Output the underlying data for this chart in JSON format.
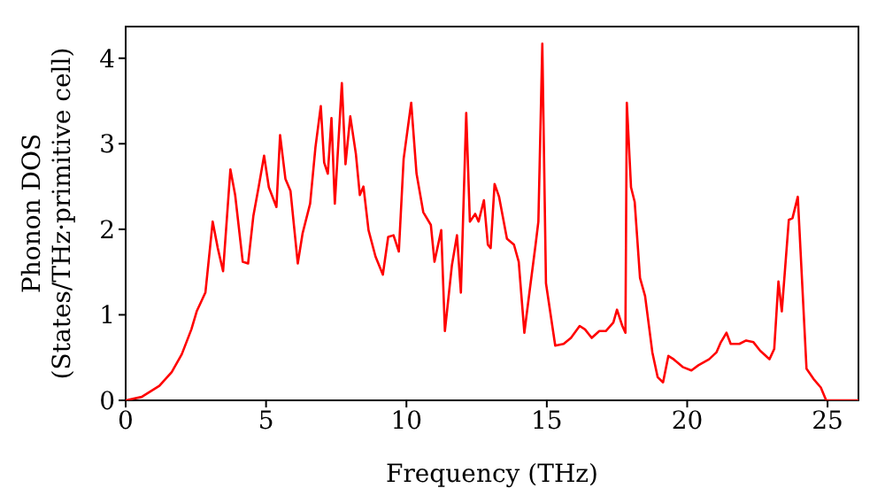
{
  "chart_data": {
    "type": "line",
    "xlabel": "Frequency (THz)",
    "ylabel": "Phonon DOS\n(States/THz·primitive cell)",
    "xlim": [
      0,
      26.1
    ],
    "xticks": [
      0,
      5,
      10,
      15,
      20,
      25
    ],
    "ylim": [
      0,
      4.37
    ],
    "yticks": [
      0,
      1,
      2,
      3,
      4
    ],
    "grid": false,
    "legend": false,
    "marker": "none",
    "line_style": "solid",
    "x": [
      0,
      0.57,
      1.2,
      1.64,
      2.0,
      2.34,
      2.53,
      2.84,
      3.1,
      3.28,
      3.47,
      3.73,
      3.9,
      4.17,
      4.36,
      4.55,
      4.74,
      4.93,
      5.1,
      5.37,
      5.5,
      5.69,
      5.87,
      6.13,
      6.3,
      6.57,
      6.76,
      6.95,
      7.07,
      7.2,
      7.33,
      7.45,
      7.7,
      7.83,
      8.0,
      8.2,
      8.34,
      8.47,
      8.65,
      8.9,
      9.16,
      9.35,
      9.54,
      9.73,
      9.9,
      10.17,
      10.36,
      10.6,
      10.87,
      11.0,
      11.24,
      11.37,
      11.62,
      11.8,
      11.94,
      12.13,
      12.26,
      12.45,
      12.57,
      12.76,
      12.9,
      13.0,
      13.14,
      13.3,
      13.58,
      13.83,
      14.0,
      14.2,
      14.4,
      14.6,
      14.7,
      14.84,
      14.97,
      15.3,
      15.6,
      15.86,
      16.17,
      16.36,
      16.6,
      16.87,
      17.1,
      17.37,
      17.5,
      17.69,
      17.8,
      17.85,
      18.0,
      18.13,
      18.32,
      18.5,
      18.76,
      18.95,
      19.14,
      19.33,
      19.52,
      19.84,
      20.15,
      20.4,
      20.78,
      21.04,
      21.2,
      21.4,
      21.55,
      21.86,
      22.1,
      22.36,
      22.6,
      22.8,
      22.93,
      23.1,
      23.25,
      23.37,
      23.62,
      23.75,
      23.94,
      24.25,
      24.5,
      24.76,
      24.95,
      26.1
    ],
    "series": [
      {
        "color": "#ff0000",
        "values": [
          0,
          0.04,
          0.17,
          0.33,
          0.54,
          0.83,
          1.04,
          1.26,
          2.09,
          1.78,
          1.51,
          2.7,
          2.4,
          1.62,
          1.6,
          2.16,
          2.5,
          2.86,
          2.49,
          2.26,
          3.1,
          2.59,
          2.45,
          1.6,
          1.95,
          2.3,
          2.96,
          3.44,
          2.78,
          2.65,
          3.3,
          2.3,
          3.71,
          2.76,
          3.32,
          2.88,
          2.4,
          2.5,
          1.99,
          1.68,
          1.47,
          1.91,
          1.93,
          1.74,
          2.82,
          3.48,
          2.65,
          2.2,
          2.05,
          1.62,
          1.99,
          0.81,
          1.58,
          1.93,
          1.26,
          3.36,
          2.09,
          2.18,
          2.09,
          2.34,
          1.82,
          1.78,
          2.53,
          2.38,
          1.89,
          1.82,
          1.62,
          0.79,
          1.31,
          1.82,
          2.09,
          4.17,
          1.37,
          0.64,
          0.66,
          0.73,
          0.87,
          0.83,
          0.73,
          0.81,
          0.81,
          0.91,
          1.06,
          0.87,
          0.79,
          3.48,
          2.49,
          2.32,
          1.43,
          1.22,
          0.56,
          0.27,
          0.21,
          0.52,
          0.48,
          0.39,
          0.35,
          0.41,
          0.48,
          0.56,
          0.68,
          0.79,
          0.66,
          0.66,
          0.7,
          0.68,
          0.58,
          0.52,
          0.48,
          0.6,
          1.39,
          1.04,
          2.11,
          2.13,
          2.38,
          0.37,
          0.25,
          0.15,
          0,
          0
        ]
      }
    ]
  }
}
